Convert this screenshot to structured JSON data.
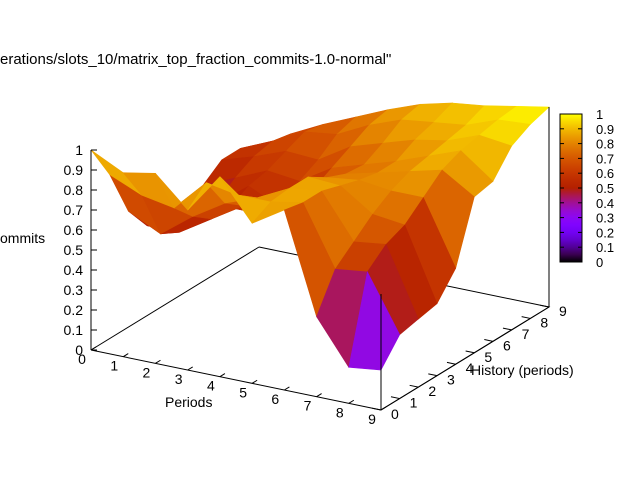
{
  "chart_data": {
    "type": "surface3d",
    "title": "erations/slots_10/matrix_top_fraction_commits-1.0-normal\"",
    "xlabel": "Periods",
    "ylabel": "History (periods)",
    "zlabel": "ommits",
    "x_ticks": [
      "0",
      "1",
      "2",
      "3",
      "4",
      "5",
      "6",
      "7",
      "8",
      "9"
    ],
    "y_ticks": [
      "0",
      "1",
      "2",
      "3",
      "4",
      "5",
      "6",
      "7",
      "8",
      "9"
    ],
    "z_ticks": [
      "0",
      "0.1",
      "0.2",
      "0.3",
      "0.4",
      "0.5",
      "0.6",
      "0.7",
      "0.8",
      "0.9",
      "1"
    ],
    "colorbar_ticks": [
      "0",
      "0.1",
      "0.2",
      "0.3",
      "0.4",
      "0.5",
      "0.6",
      "0.7",
      "0.8",
      "0.9",
      "1"
    ],
    "xlim": [
      0,
      9
    ],
    "ylim": [
      0,
      9
    ],
    "zlim": [
      0,
      1
    ],
    "colormap": "gnuplot-pm3d",
    "x": [
      0,
      1,
      2,
      3,
      4,
      5,
      6,
      7,
      8,
      9
    ],
    "y": [
      0,
      1,
      2,
      3,
      4,
      5,
      6,
      7,
      8,
      9
    ],
    "z": [
      [
        1.0,
        0.82,
        0.58,
        0.45,
        0.42,
        0.42,
        0.48,
        0.55,
        0.55,
        0.5
      ],
      [
        0.92,
        0.75,
        0.5,
        0.45,
        0.45,
        0.48,
        0.55,
        0.6,
        0.62,
        0.6
      ],
      [
        0.95,
        0.72,
        0.62,
        0.55,
        0.55,
        0.6,
        0.62,
        0.66,
        0.7,
        0.68
      ],
      [
        0.8,
        0.88,
        0.72,
        0.65,
        0.55,
        0.52,
        0.6,
        0.65,
        0.72,
        0.75
      ],
      [
        1.0,
        0.85,
        0.78,
        0.72,
        0.68,
        0.65,
        0.7,
        0.75,
        0.8,
        0.82
      ],
      [
        0.8,
        0.85,
        0.86,
        0.86,
        0.8,
        0.76,
        0.75,
        0.8,
        0.86,
        0.88
      ],
      [
        0.9,
        0.88,
        0.88,
        0.85,
        0.82,
        0.8,
        0.8,
        0.85,
        0.88,
        0.92
      ],
      [
        0.4,
        0.58,
        0.66,
        0.74,
        0.8,
        0.84,
        0.86,
        0.88,
        0.9,
        0.94
      ],
      [
        0.18,
        0.6,
        0.68,
        0.72,
        0.8,
        0.88,
        0.92,
        0.94,
        0.96,
        0.97
      ],
      [
        0.2,
        0.32,
        0.34,
        0.36,
        0.48,
        0.78,
        0.8,
        0.92,
        0.97,
        1.0
      ]
    ]
  }
}
